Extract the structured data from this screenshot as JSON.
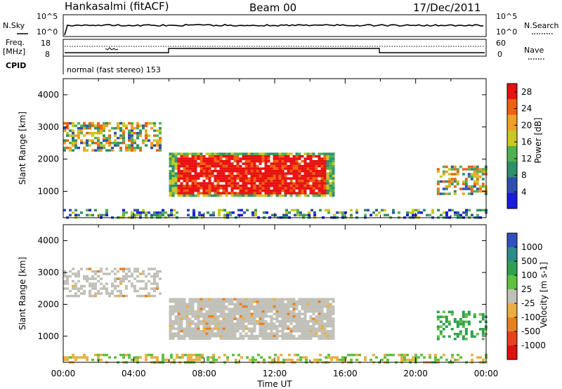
{
  "header": {
    "station": "Hankasalmi (fitACF)",
    "beam": "Beam 00",
    "date": "17/Dec/2011"
  },
  "top_panel": {
    "left_label": "N.Sky",
    "right_label": "N.Search",
    "left_ticks": [
      "10^5",
      "10^0"
    ],
    "right_ticks": [
      "10^5",
      "10^0"
    ]
  },
  "freq_panel": {
    "left_label_1": "Freq.",
    "left_label_2": "[MHz]",
    "left_ticks": [
      "18",
      "8"
    ],
    "right_label": "Nave",
    "right_ticks": [
      "60",
      "0"
    ]
  },
  "cpid": {
    "label": "CPID",
    "value": "normal (fast stereo) 153"
  },
  "colors": {
    "power_scale": [
      "#1a1ae0",
      "#2f4fb0",
      "#2f8f6a",
      "#4fb24f",
      "#c8c820",
      "#f0a020",
      "#f06010",
      "#e81010"
    ],
    "velocity_scale": [
      "#3050c0",
      "#2f8a8a",
      "#30a050",
      "#60c040",
      "#c0c0b8",
      "#e8b040",
      "#e88020",
      "#e84020",
      "#e01010"
    ]
  },
  "chart_data": [
    {
      "type": "heatmap",
      "title": "",
      "xlabel": "",
      "ylabel": "Slant Range [km]",
      "x_range_hours": [
        0,
        24
      ],
      "ylim": [
        180,
        4500
      ],
      "y_ticks": [
        1000,
        2000,
        3000,
        4000
      ],
      "colorbar": {
        "label": "Power [dB]",
        "ticks": [
          4,
          8,
          12,
          16,
          20,
          24,
          28
        ],
        "range": [
          0,
          30
        ]
      },
      "echo_regions": [
        {
          "name": "far range band",
          "t_start": 0.0,
          "t_end": 5.5,
          "r_low": 2300,
          "r_high": 3150,
          "level": "medium"
        },
        {
          "name": "main echo",
          "t_start": 6.0,
          "t_end": 15.3,
          "r_low": 900,
          "r_high": 2200,
          "level": "strong"
        },
        {
          "name": "late near range",
          "t_start": 21.2,
          "t_end": 24.0,
          "r_low": 900,
          "r_high": 1800,
          "level": "medium"
        },
        {
          "name": "ground clutter",
          "t_start": 0.0,
          "t_end": 24.0,
          "r_low": 180,
          "r_high": 450,
          "level": "weak"
        }
      ]
    },
    {
      "type": "heatmap",
      "title": "",
      "xlabel": "Time UT",
      "ylabel": "Slant Range [km]",
      "x_range_hours": [
        0,
        24
      ],
      "x_tick_labels": [
        "00:00",
        "04:00",
        "08:00",
        "12:00",
        "16:00",
        "20:00",
        "00:00"
      ],
      "ylim": [
        180,
        4500
      ],
      "y_ticks": [
        1000,
        2000,
        3000,
        4000
      ],
      "colorbar": {
        "label": "Velocity [m s-1]",
        "ticks": [
          1000,
          500,
          100,
          25,
          -25,
          -100,
          -500,
          -1000
        ]
      },
      "echo_regions": [
        {
          "name": "far range band",
          "t_start": 0.0,
          "t_end": 5.5,
          "r_low": 2300,
          "r_high": 3150,
          "level": "near zero"
        },
        {
          "name": "main echo",
          "t_start": 6.0,
          "t_end": 15.3,
          "r_low": 900,
          "r_high": 2200,
          "level": "near zero"
        },
        {
          "name": "late near range",
          "t_start": 21.2,
          "t_end": 24.0,
          "r_low": 900,
          "r_high": 1800,
          "level": "positive"
        },
        {
          "name": "ground clutter",
          "t_start": 0.0,
          "t_end": 24.0,
          "r_low": 180,
          "r_high": 450,
          "level": "small"
        }
      ]
    }
  ]
}
